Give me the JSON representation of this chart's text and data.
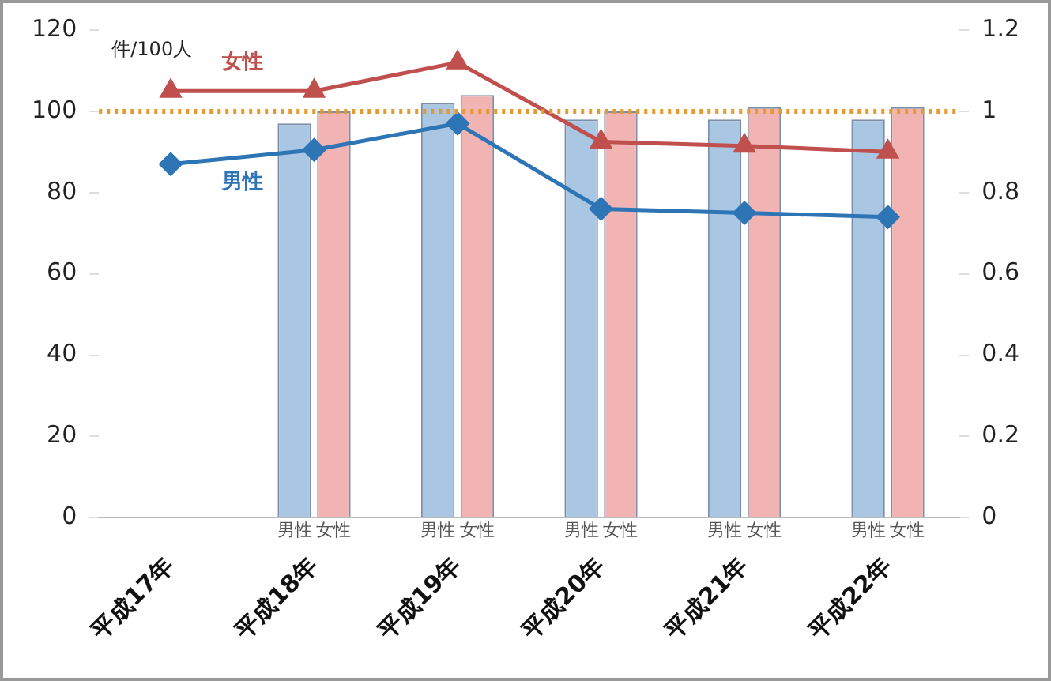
{
  "chart_data": {
    "type": "bar",
    "ylabel": "件/100人",
    "categories": [
      "平成17年",
      "平成18年",
      "平成19年",
      "平成20年",
      "平成21年",
      "平成22年"
    ],
    "series": [
      {
        "name": "男性",
        "axis": "y2",
        "color": "#a9c6e3",
        "values": [
          null,
          0.97,
          1.02,
          0.98,
          0.98,
          0.98
        ]
      },
      {
        "name": "女性",
        "axis": "y2",
        "color": "#f2b3b3",
        "values": [
          null,
          1.0,
          1.04,
          1.0,
          1.01,
          1.01
        ]
      },
      {
        "name": "女性",
        "type": "line",
        "axis": "y",
        "color": "#c0504d",
        "marker": "triangle",
        "values": [
          105,
          105,
          112,
          92.5,
          91.5,
          90
        ]
      },
      {
        "name": "男性",
        "type": "line",
        "axis": "y",
        "color": "#2e75b6",
        "marker": "diamond",
        "values": [
          87,
          90.5,
          97,
          76,
          75,
          74
        ]
      }
    ],
    "ylim": [
      0,
      120
    ],
    "yticks": [
      0,
      20,
      40,
      60,
      80,
      100,
      120
    ],
    "y2lim": [
      0,
      1.2
    ],
    "y2ticks": [
      0,
      0.2,
      0.4,
      0.6,
      0.8,
      1,
      1.2
    ],
    "ref_lines": [
      {
        "axis": "y2",
        "value": 1,
        "color": "#e69a2e",
        "line_style": "dotted"
      }
    ],
    "grid": false,
    "legend": false
  }
}
